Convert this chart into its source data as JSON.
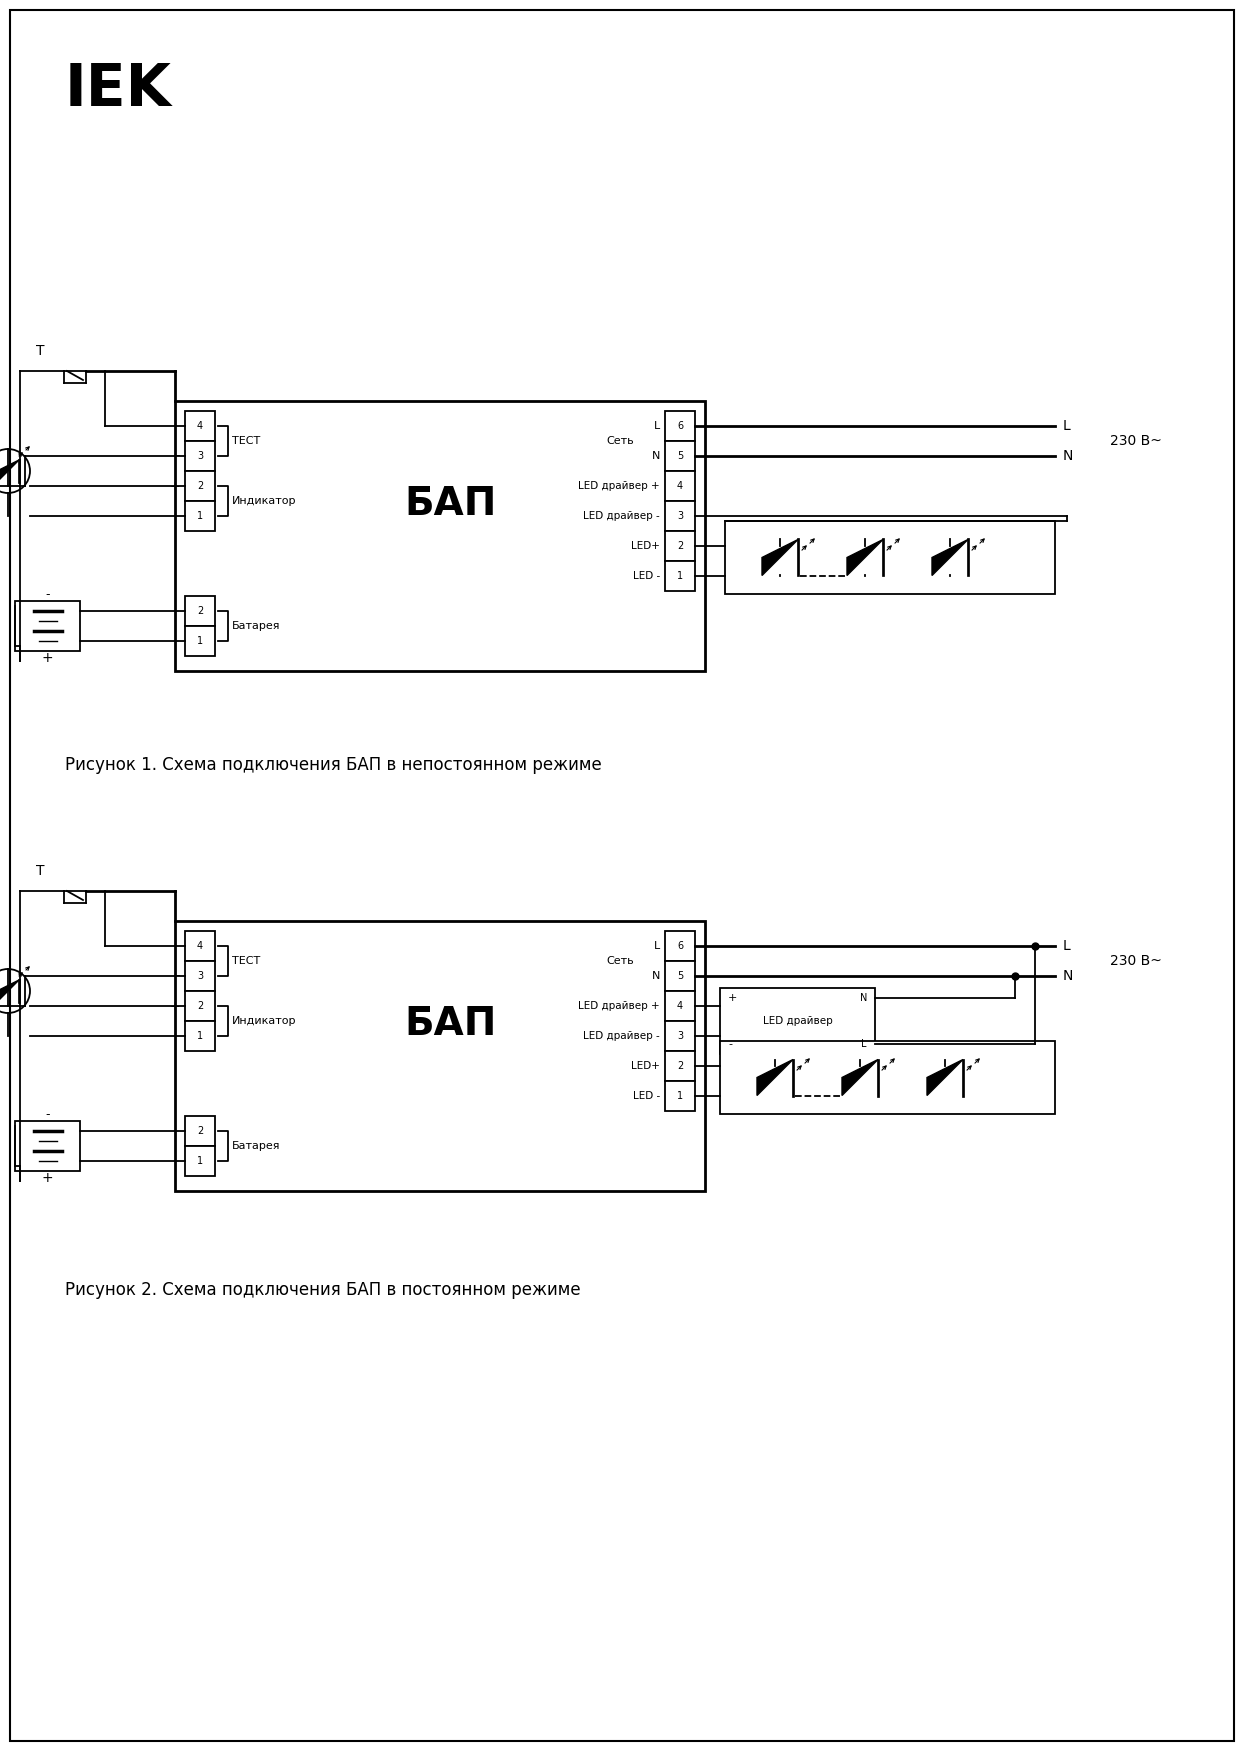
{
  "bg": "#ffffff",
  "fg": "#000000",
  "lw": 1.3,
  "lw2": 2.0,
  "caption1": "Рисунок 1. Схема подключения БАП в непостоянном режиме",
  "caption2": "Рисунок 2. Схема подключения БАП в постоянном режиме",
  "bap": "БАП",
  "test": "ТЕСТ",
  "ind": "Индикатор",
  "bat": "Батарея",
  "net": "Сеть",
  "led_drv_p": "LED драйвер +",
  "led_drv_m": "LED драйвер -",
  "led_p": "LED+",
  "led_m": "LED -",
  "v230": "230 В~",
  "led_drv_label": "LED драйвер"
}
